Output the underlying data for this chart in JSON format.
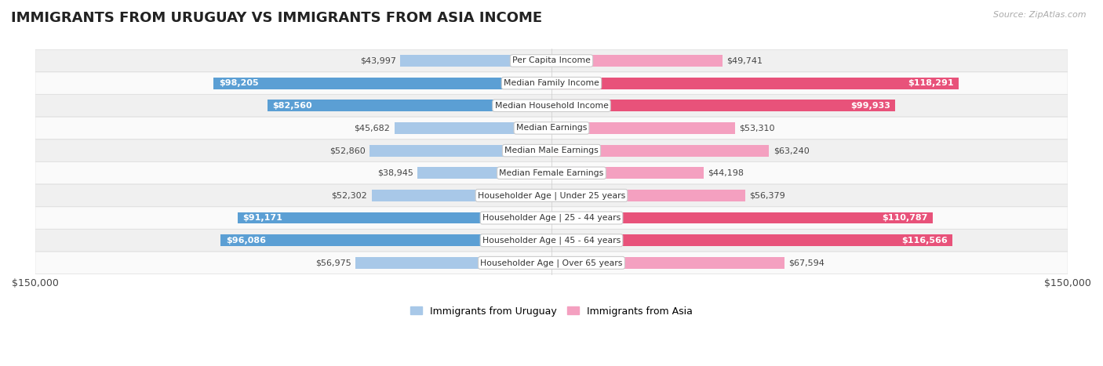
{
  "title": "IMMIGRANTS FROM URUGUAY VS IMMIGRANTS FROM ASIA INCOME",
  "source": "Source: ZipAtlas.com",
  "categories": [
    "Per Capita Income",
    "Median Family Income",
    "Median Household Income",
    "Median Earnings",
    "Median Male Earnings",
    "Median Female Earnings",
    "Householder Age | Under 25 years",
    "Householder Age | 25 - 44 years",
    "Householder Age | 45 - 64 years",
    "Householder Age | Over 65 years"
  ],
  "uruguay_values": [
    43997,
    98205,
    82560,
    45682,
    52860,
    38945,
    52302,
    91171,
    96086,
    56975
  ],
  "asia_values": [
    49741,
    118291,
    99933,
    53310,
    63240,
    44198,
    56379,
    110787,
    116566,
    67594
  ],
  "uruguay_labels": [
    "$43,997",
    "$98,205",
    "$82,560",
    "$45,682",
    "$52,860",
    "$38,945",
    "$52,302",
    "$91,171",
    "$96,086",
    "$56,975"
  ],
  "asia_labels": [
    "$49,741",
    "$118,291",
    "$99,933",
    "$53,310",
    "$63,240",
    "$44,198",
    "$56,379",
    "$110,787",
    "$116,566",
    "$67,594"
  ],
  "uruguay_color_normal": "#A8C8E8",
  "uruguay_color_bold": "#5B9FD4",
  "asia_color_normal": "#F4A0C0",
  "asia_color_bold": "#E8527A",
  "max_value": 150000,
  "bar_height": 0.52,
  "bg_color": "#ffffff",
  "row_colors": [
    "#f0f0f0",
    "#fafafa"
  ],
  "legend_uruguay": "Immigrants from Uruguay",
  "legend_asia": "Immigrants from Asia",
  "uruguay_bold_threshold": 75000,
  "asia_bold_threshold": 75000,
  "title_fontsize": 13,
  "label_fontsize": 8,
  "cat_fontsize": 7.8
}
